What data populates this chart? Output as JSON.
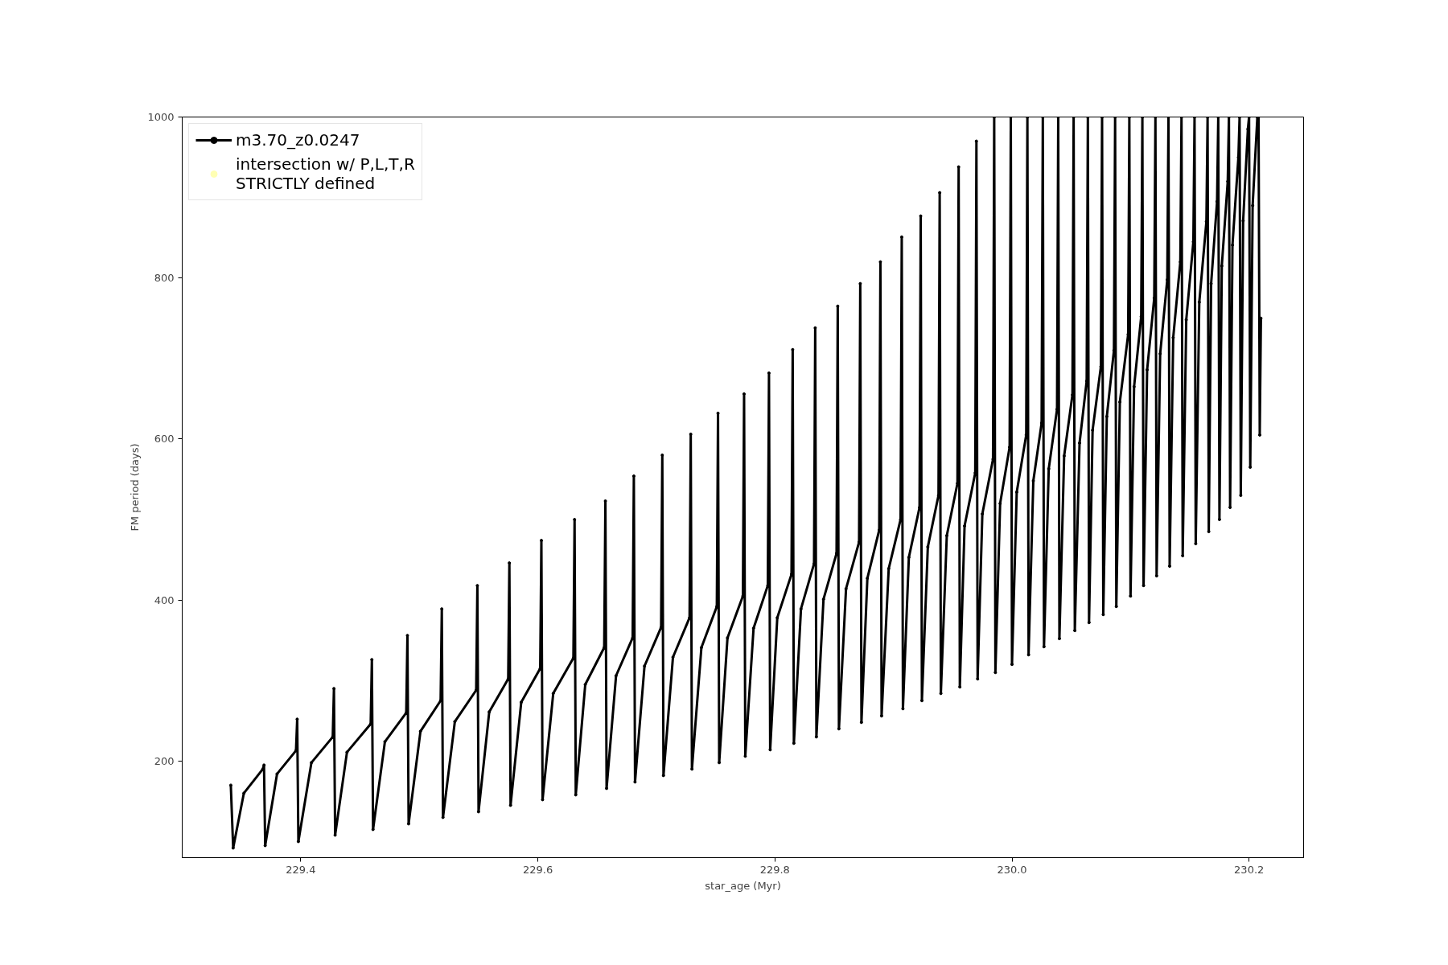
{
  "chart_data": {
    "type": "line",
    "xlabel": "star_age (Myr)",
    "ylabel": "FM period (days)",
    "xlim": [
      229.3,
      230.246
    ],
    "ylim": [
      80,
      1000
    ],
    "xticks": [
      229.4,
      229.6,
      229.8,
      {
        "value": 230,
        "label": "230.0"
      },
      230.2
    ],
    "yticks": [
      200,
      400,
      600,
      800,
      1000
    ],
    "grid": false,
    "legend": "top left",
    "series": [
      {
        "name": "m3.70_z0.0247",
        "color": "#000000",
        "marker": "circle",
        "line_style": "solid",
        "x": [
          229.341,
          229.343,
          229.352,
          229.368,
          229.369,
          229.37,
          229.38,
          229.396,
          229.397,
          229.398,
          229.409,
          229.427,
          229.428,
          229.429,
          229.439,
          229.459,
          229.46,
          229.461,
          229.471,
          229.489,
          229.49,
          229.491,
          229.501,
          229.518,
          229.519,
          229.52,
          229.53,
          229.548,
          229.549,
          229.55,
          229.559,
          229.575,
          229.576,
          229.577,
          229.586,
          229.602,
          229.603,
          229.604,
          229.613,
          229.63,
          229.631,
          229.632,
          229.64,
          229.656,
          229.657,
          229.658,
          229.666,
          229.68,
          229.681,
          229.682,
          229.69,
          229.704,
          229.705,
          229.706,
          229.714,
          229.728,
          229.729,
          229.73,
          229.738,
          229.751,
          229.752,
          229.753,
          229.76,
          229.773,
          229.774,
          229.775,
          229.782,
          229.794,
          229.795,
          229.796,
          229.802,
          229.814,
          229.815,
          229.816,
          229.822,
          229.833,
          229.834,
          229.835,
          229.841,
          229.852,
          229.853,
          229.854,
          229.86,
          229.871,
          229.872,
          229.873,
          229.878,
          229.888,
          229.889,
          229.89,
          229.896,
          229.906,
          229.907,
          229.908,
          229.913,
          229.922,
          229.923,
          229.924,
          229.929,
          229.938,
          229.939,
          229.94,
          229.945,
          229.954,
          229.955,
          229.956,
          229.96,
          229.969,
          229.97,
          229.971,
          229.975,
          229.984,
          229.985,
          229.986,
          229.99,
          229.998,
          229.999,
          230.0,
          230.004,
          230.012,
          230.013,
          230.014,
          230.018,
          230.025,
          230.026,
          230.027,
          230.031,
          230.038,
          230.039,
          230.04,
          230.044,
          230.051,
          230.052,
          230.053,
          230.057,
          230.063,
          230.064,
          230.065,
          230.068,
          230.075,
          230.076,
          230.077,
          230.08,
          230.086,
          230.087,
          230.088,
          230.091,
          230.098,
          230.099,
          230.1,
          230.103,
          230.109,
          230.11,
          230.111,
          230.114,
          230.12,
          230.121,
          230.122,
          230.125,
          230.131,
          230.132,
          230.133,
          230.136,
          230.142,
          230.143,
          230.144,
          230.147,
          230.153,
          230.154,
          230.155,
          230.158,
          230.164,
          230.165,
          230.166,
          230.168,
          230.173,
          230.174,
          230.175,
          230.177,
          230.182,
          230.183,
          230.184,
          230.186,
          230.191,
          230.192,
          230.193,
          230.195,
          230.199,
          230.2,
          230.201,
          230.203,
          230.207,
          230.208,
          230.209,
          230.21
        ],
        "values": [
          170,
          92,
          160,
          190,
          195,
          95,
          184,
          213,
          252,
          100,
          198,
          230,
          290,
          108,
          211,
          246,
          326,
          115,
          224,
          260,
          356,
          122,
          237,
          275,
          389,
          130,
          249,
          288,
          418,
          137,
          261,
          302,
          446,
          145,
          273,
          315,
          474,
          152,
          284,
          328,
          500,
          158,
          295,
          341,
          523,
          166,
          306,
          353,
          554,
          174,
          318,
          366,
          580,
          182,
          329,
          378,
          606,
          190,
          341,
          392,
          632,
          198,
          353,
          405,
          656,
          206,
          365,
          418,
          682,
          214,
          378,
          432,
          711,
          222,
          389,
          445,
          738,
          230,
          401,
          458,
          765,
          240,
          414,
          472,
          793,
          248,
          427,
          487,
          820,
          256,
          439,
          500,
          851,
          265,
          453,
          515,
          877,
          275,
          466,
          530,
          906,
          284,
          480,
          545,
          938,
          292,
          492,
          558,
          970,
          302,
          507,
          575,
          1000,
          310,
          520,
          590,
          1000,
          320,
          534,
          605,
          1000,
          332,
          548,
          620,
          1000,
          342,
          563,
          637,
          1000,
          352,
          579,
          655,
          1000,
          362,
          595,
          672,
          1000,
          372,
          611,
          690,
          1000,
          382,
          628,
          710,
          1000,
          392,
          646,
          730,
          1000,
          405,
          665,
          752,
          1000,
          418,
          686,
          775,
          1000,
          430,
          706,
          798,
          1000,
          442,
          726,
          820,
          1000,
          455,
          748,
          845,
          1000,
          470,
          770,
          870,
          1000,
          485,
          793,
          895,
          1000,
          500,
          815,
          920,
          1000,
          515,
          841,
          950,
          1000,
          530,
          871,
          985,
          1000,
          565,
          890,
          1000,
          1000,
          605,
          750
        ]
      },
      {
        "name": "intersection w/ P,L,T,R\nSTRICTLY defined",
        "type": "scatter",
        "color": "#ffffb3",
        "marker": "circle"
      }
    ]
  }
}
